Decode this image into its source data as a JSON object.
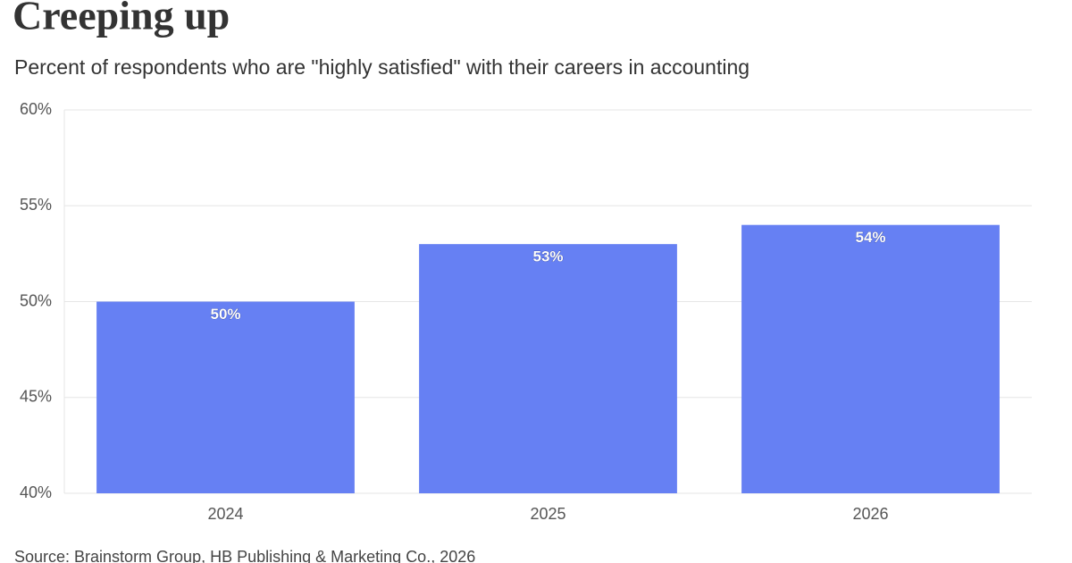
{
  "chart_data": {
    "type": "bar",
    "title": "Creeping up",
    "subtitle": "Percent of respondents who are \"highly satisfied\" with their careers in accounting",
    "categories": [
      "2024",
      "2025",
      "2026"
    ],
    "values": [
      50,
      53,
      54
    ],
    "value_labels": [
      "50%",
      "53%",
      "54%"
    ],
    "color": "#6680f3",
    "ylim": [
      40,
      60
    ],
    "yticks": [
      {
        "value": 40,
        "label": "40%"
      },
      {
        "value": 45,
        "label": "45%"
      },
      {
        "value": 50,
        "label": "50%"
      },
      {
        "value": 55,
        "label": "55%"
      },
      {
        "value": 60,
        "label": "60%"
      }
    ],
    "grid": true,
    "source": "Source: Brainstorm Group, HB Publishing & Marketing Co., 2026"
  }
}
